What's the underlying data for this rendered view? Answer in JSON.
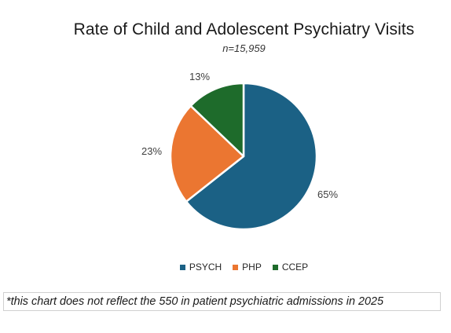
{
  "chart_data": {
    "type": "pie",
    "title": "Rate of Child and Adolescent Psychiatry Visits",
    "subtitle": "n=15,959",
    "slices": [
      {
        "name": "PSYCH",
        "value": 65,
        "label": "65%",
        "color": "#1b6185"
      },
      {
        "name": "PHP",
        "value": 23,
        "label": "23%",
        "color": "#eb7631"
      },
      {
        "name": "CCEP",
        "value": 13,
        "label": "13%",
        "color": "#1e6b2b"
      }
    ],
    "legend_position": "bottom"
  },
  "footnote": "*this chart does not reflect the 550 in patient psychiatric admissions in 2025"
}
